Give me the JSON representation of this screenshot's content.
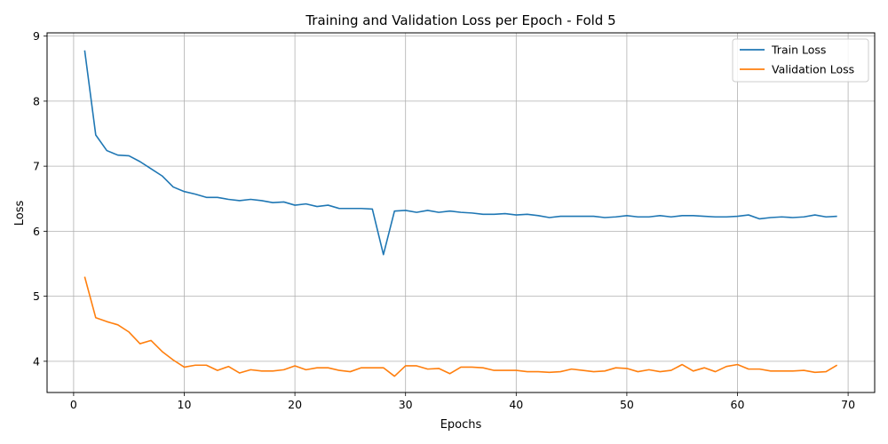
{
  "chart_data": {
    "type": "line",
    "title": "Training and Validation Loss per Epoch - Fold 5",
    "xlabel": "Epochs",
    "ylabel": "Loss",
    "xlim": [
      -2.4,
      72.4
    ],
    "ylim": [
      3.52,
      9.05
    ],
    "xticks": [
      0,
      10,
      20,
      30,
      40,
      50,
      60,
      70
    ],
    "yticks": [
      4,
      5,
      6,
      7,
      8,
      9
    ],
    "grid": true,
    "legend_position": "upper-right",
    "x": [
      1,
      2,
      3,
      4,
      5,
      6,
      7,
      8,
      9,
      10,
      11,
      12,
      13,
      14,
      15,
      16,
      17,
      18,
      19,
      20,
      21,
      22,
      23,
      24,
      25,
      26,
      27,
      28,
      29,
      30,
      31,
      32,
      33,
      34,
      35,
      36,
      37,
      38,
      39,
      40,
      41,
      42,
      43,
      44,
      45,
      46,
      47,
      48,
      49,
      50,
      51,
      52,
      53,
      54,
      55,
      56,
      57,
      58,
      59,
      60,
      61,
      62,
      63,
      64,
      65,
      66,
      67,
      68,
      69
    ],
    "series": [
      {
        "name": "Train Loss",
        "color": "#1f77b4",
        "values": [
          8.78,
          7.48,
          7.24,
          7.17,
          7.16,
          7.07,
          6.96,
          6.85,
          6.68,
          6.61,
          6.57,
          6.52,
          6.52,
          6.49,
          6.47,
          6.49,
          6.47,
          6.44,
          6.45,
          6.4,
          6.42,
          6.38,
          6.4,
          6.35,
          6.35,
          6.35,
          6.34,
          5.64,
          6.31,
          6.32,
          6.29,
          6.32,
          6.29,
          6.31,
          6.29,
          6.28,
          6.26,
          6.26,
          6.27,
          6.25,
          6.26,
          6.24,
          6.21,
          6.23,
          6.23,
          6.23,
          6.23,
          6.21,
          6.22,
          6.24,
          6.22,
          6.22,
          6.24,
          6.22,
          6.24,
          6.24,
          6.23,
          6.22,
          6.22,
          6.23,
          6.25,
          6.19,
          6.21,
          6.22,
          6.21,
          6.22,
          6.25,
          6.22,
          6.23
        ]
      },
      {
        "name": "Validation Loss",
        "color": "#ff7f0e",
        "values": [
          5.3,
          4.67,
          4.61,
          4.56,
          4.45,
          4.27,
          4.32,
          4.15,
          4.02,
          3.91,
          3.94,
          3.94,
          3.86,
          3.92,
          3.82,
          3.87,
          3.85,
          3.85,
          3.87,
          3.93,
          3.87,
          3.9,
          3.9,
          3.86,
          3.84,
          3.9,
          3.9,
          3.9,
          3.77,
          3.93,
          3.93,
          3.88,
          3.89,
          3.81,
          3.91,
          3.91,
          3.9,
          3.86,
          3.86,
          3.86,
          3.84,
          3.84,
          3.83,
          3.84,
          3.88,
          3.86,
          3.84,
          3.85,
          3.9,
          3.89,
          3.84,
          3.87,
          3.84,
          3.86,
          3.95,
          3.85,
          3.9,
          3.84,
          3.92,
          3.95,
          3.88,
          3.88,
          3.85,
          3.85,
          3.85,
          3.86,
          3.83,
          3.84,
          3.94
        ]
      }
    ]
  }
}
